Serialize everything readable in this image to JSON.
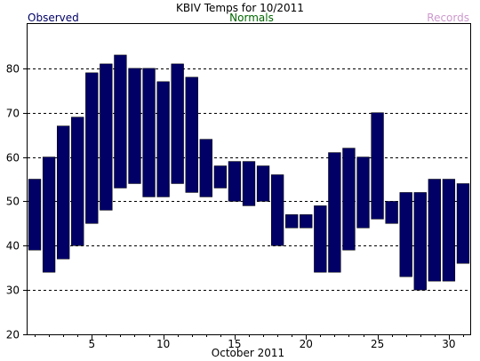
{
  "chart_data": {
    "type": "bar",
    "title": "KBIV Temps for 10/2011",
    "xlabel": "October 2011",
    "ylabel": "",
    "legend": {
      "placement": "top",
      "entries": [
        {
          "label": "Observed",
          "color": "#000066"
        },
        {
          "label": "Normals",
          "color": "#006600"
        },
        {
          "label": "Records",
          "color": "#cc99cc"
        }
      ]
    },
    "xlim": [
      0.5,
      31.5
    ],
    "ylim": [
      20,
      90
    ],
    "x_ticks": [
      5,
      10,
      15,
      20,
      25,
      30
    ],
    "y_ticks": [
      20,
      30,
      40,
      50,
      60,
      70,
      80
    ],
    "grid": true,
    "bar_color": "#000066",
    "series": [
      {
        "name": "Observed",
        "days": [
          1,
          2,
          3,
          4,
          5,
          6,
          7,
          8,
          9,
          10,
          11,
          12,
          13,
          14,
          15,
          16,
          17,
          18,
          19,
          20,
          21,
          22,
          23,
          24,
          25,
          26,
          27,
          28,
          29,
          30,
          31
        ],
        "low": [
          39,
          34,
          37,
          40,
          45,
          48,
          53,
          54,
          51,
          51,
          54,
          52,
          51,
          53,
          50,
          49,
          50,
          40,
          44,
          44,
          34,
          34,
          39,
          44,
          46,
          45,
          33,
          30,
          32,
          32,
          36
        ],
        "high": [
          55,
          60,
          67,
          69,
          79,
          81,
          83,
          80,
          80,
          77,
          81,
          78,
          64,
          58,
          59,
          59,
          58,
          56,
          47,
          47,
          49,
          61,
          62,
          60,
          70,
          50,
          52,
          52,
          55,
          55,
          54
        ]
      }
    ]
  }
}
